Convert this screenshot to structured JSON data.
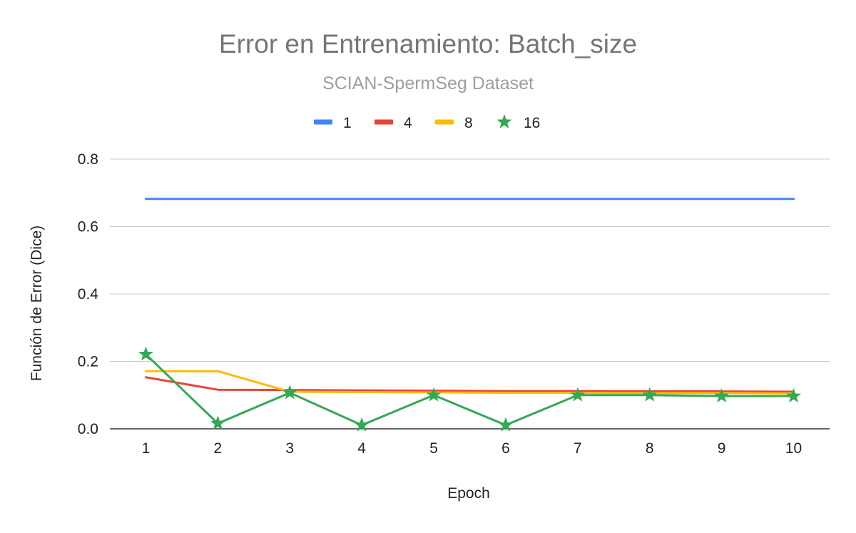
{
  "chart_data": {
    "type": "line",
    "title": "Error en Entrenamiento: Batch_size",
    "subtitle": "SCIAN-SpermSeg Dataset",
    "xlabel": "Epoch",
    "ylabel": "Función de Error (Dice)",
    "categories": [
      "1",
      "2",
      "3",
      "4",
      "5",
      "6",
      "7",
      "8",
      "9",
      "10"
    ],
    "ylim": [
      0,
      0.8
    ],
    "yticks": [
      "0.0",
      "0.2",
      "0.4",
      "0.6",
      "0.8"
    ],
    "grid": true,
    "legend_position": "top",
    "series": [
      {
        "name": "1",
        "color": "#4285F4",
        "marker": "none",
        "values": [
          0.682,
          0.682,
          0.682,
          0.682,
          0.682,
          0.682,
          0.682,
          0.682,
          0.682,
          0.682
        ]
      },
      {
        "name": "4",
        "color": "#EA4335",
        "marker": "none",
        "values": [
          0.153,
          0.116,
          0.115,
          0.114,
          0.113,
          0.112,
          0.112,
          0.111,
          0.111,
          0.11
        ]
      },
      {
        "name": "8",
        "color": "#FBBC04",
        "marker": "none",
        "values": [
          0.171,
          0.171,
          0.11,
          0.109,
          0.108,
          0.107,
          0.107,
          0.106,
          0.106,
          0.105
        ]
      },
      {
        "name": "16",
        "color": "#34A853",
        "marker": "star",
        "values": [
          0.221,
          0.016,
          0.107,
          0.011,
          0.1,
          0.011,
          0.1,
          0.1,
          0.097,
          0.097
        ]
      }
    ]
  }
}
